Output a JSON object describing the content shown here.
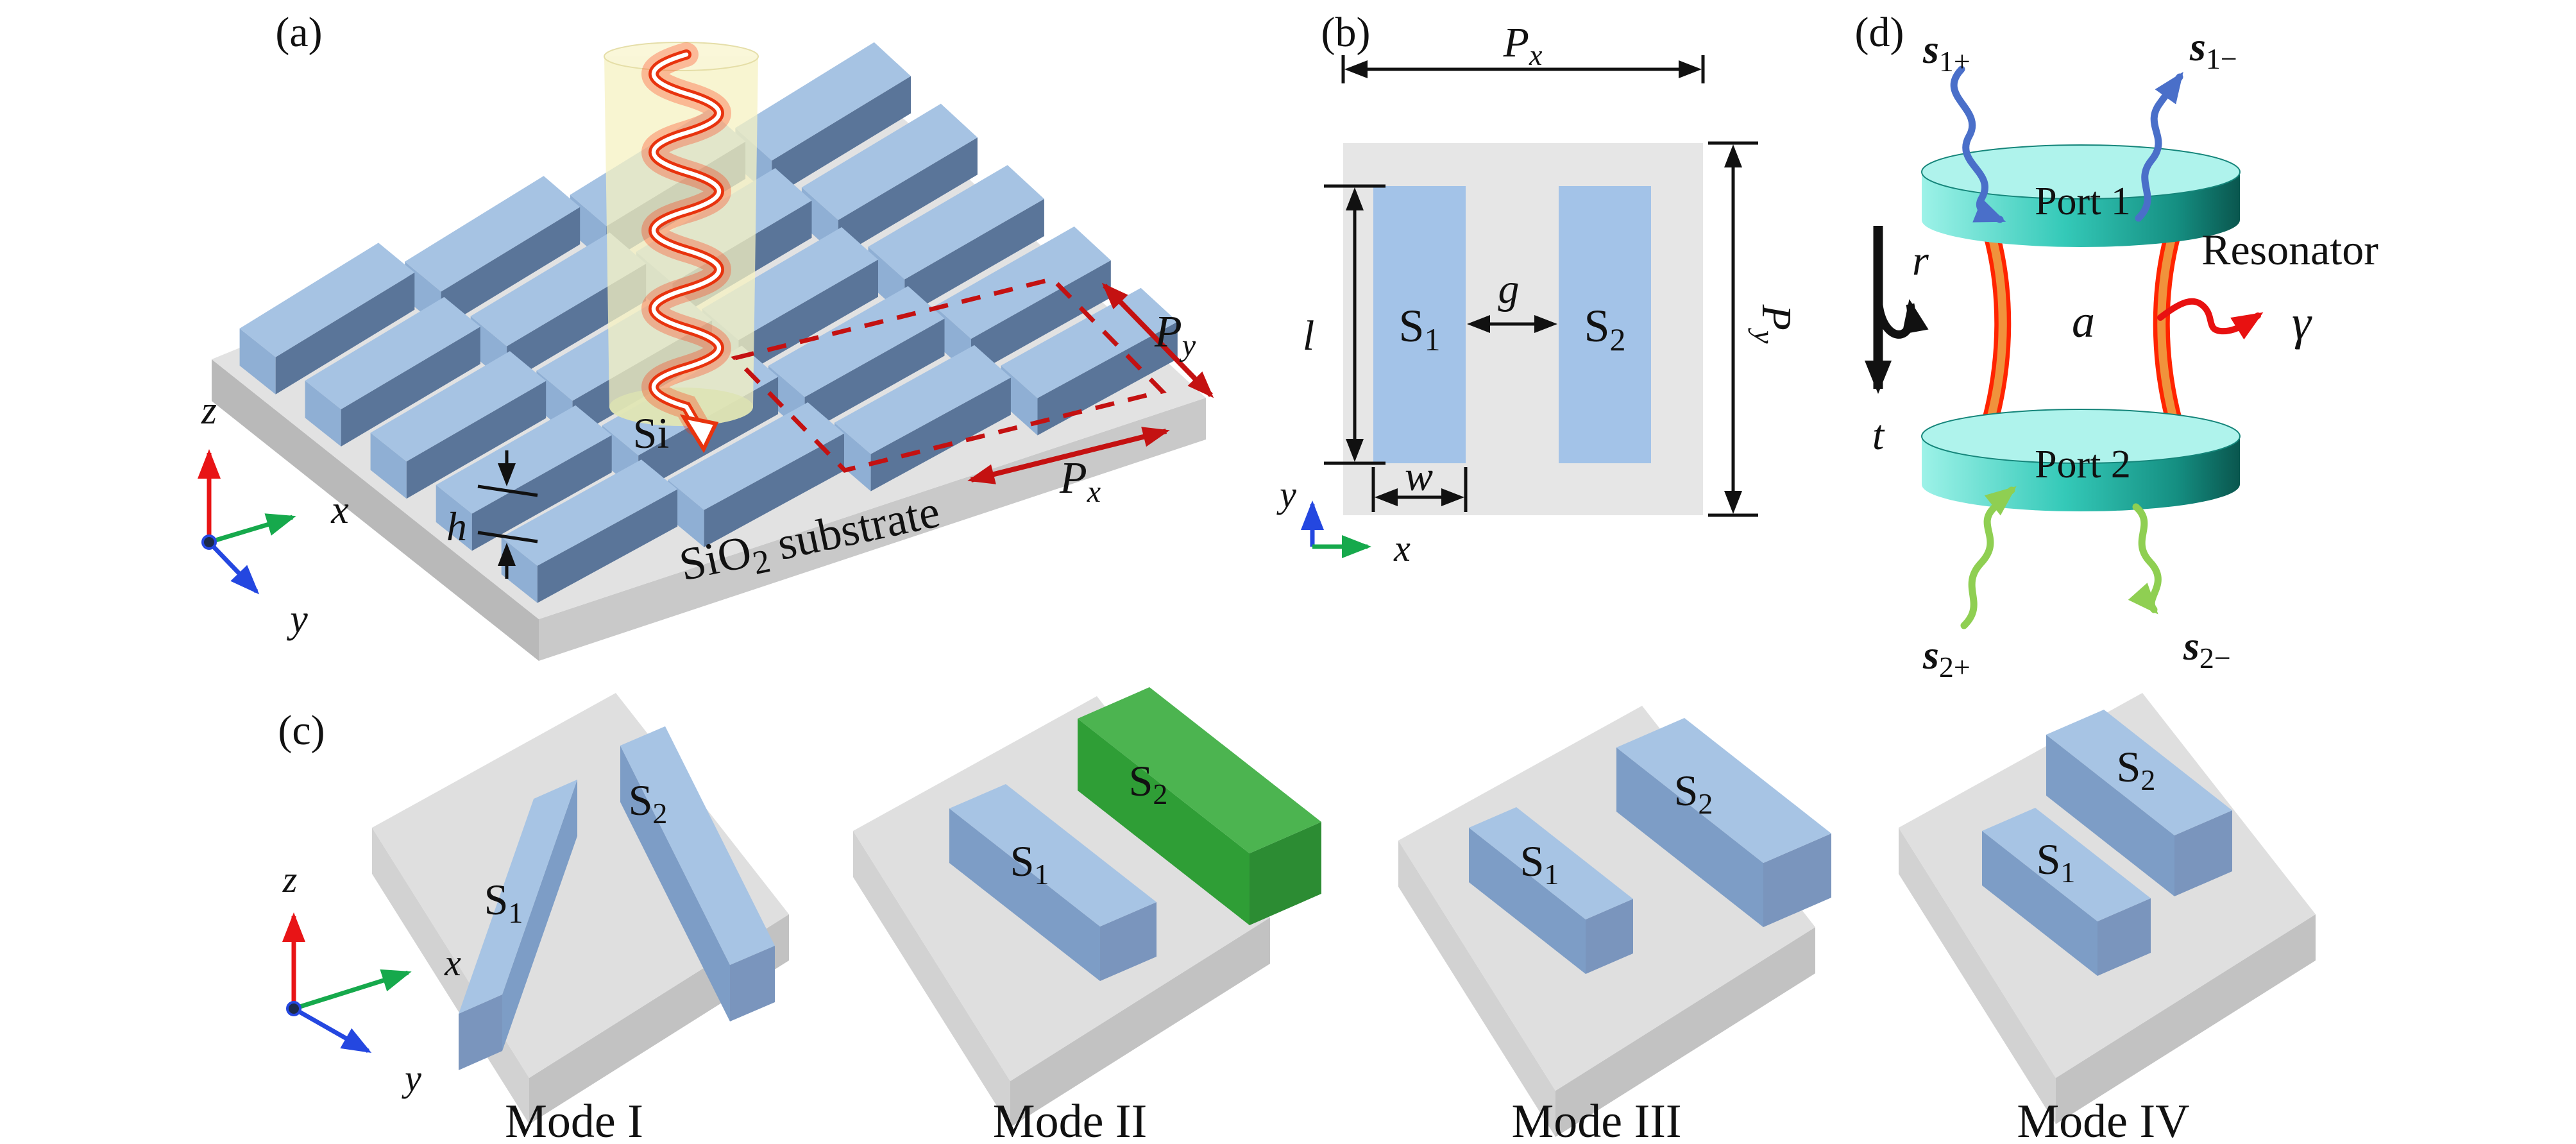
{
  "panels": {
    "a": {
      "tag": "(a)",
      "si_label": "Si",
      "substrate_base": "SiO",
      "substrate_sub": "2",
      "substrate_rest": " substrate",
      "height_label": "h",
      "px_base": "P",
      "px_sub": "x",
      "py_base": "P",
      "py_sub": "y",
      "ax_x": "x",
      "ax_y": "y",
      "ax_z": "z"
    },
    "b": {
      "tag": "(b)",
      "s1_base": "S",
      "s1_sub": "1",
      "s2_base": "S",
      "s2_sub": "2",
      "px_base": "P",
      "px_sub": "x",
      "py_base": "P",
      "py_sub": "y",
      "length_label": "l",
      "gap_label": "g",
      "width_label": "w",
      "ax_x": "x",
      "ax_y": "y"
    },
    "c": {
      "tag": "(c)",
      "ax_x": "x",
      "ax_y": "y",
      "ax_z": "z",
      "modes": [
        {
          "caption": "Mode I",
          "s1_base": "S",
          "s1_sub": "1",
          "s2_base": "S",
          "s2_sub": "2"
        },
        {
          "caption": "Mode II",
          "s1_base": "S",
          "s1_sub": "1",
          "s2_base": "S",
          "s2_sub": "2"
        },
        {
          "caption": "Mode III",
          "s1_base": "S",
          "s1_sub": "1",
          "s2_base": "S",
          "s2_sub": "2"
        },
        {
          "caption": "Mode IV",
          "s1_base": "S",
          "s1_sub": "1",
          "s2_base": "S",
          "s2_sub": "2"
        }
      ]
    },
    "d": {
      "tag": "(d)",
      "port1": "Port 1",
      "port2": "Port 2",
      "resonator": "Resonator",
      "cavity": "a",
      "reflection": "r",
      "transmission": "t",
      "gamma": "γ",
      "s1p_base": "s",
      "s1p_sub": "1+",
      "s1m_base": "s",
      "s1m_sub": "1−",
      "s2p_base": "s",
      "s2p_sub": "2+",
      "s2m_base": "s",
      "s2m_sub": "2−"
    }
  },
  "colors": {
    "si_bar_top": "#a6c3e3",
    "si_bar_side": "#5a7599",
    "green_bar_top": "#4cb450",
    "substrate_top": "#e2e2e2",
    "dimension_red": "#c41111",
    "beam_red": "#e8330e",
    "cylinder_yellow": "#f5f1c2",
    "port_teal": "#34c9b8",
    "arm_orange": "#f0923c",
    "arm_red": "#ff2400",
    "wave_blue": "#4a6fc9",
    "wave_green": "#8fcf52",
    "axis_x_green": "#16a94c",
    "axis_y_blue": "#2447e0",
    "axis_z_red": "#e81416"
  }
}
